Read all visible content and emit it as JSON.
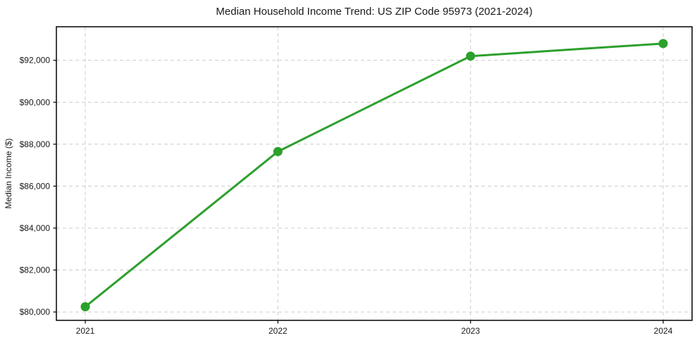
{
  "chart_data": {
    "type": "line",
    "title": "Median Household Income Trend: US ZIP Code 95973 (2021-2024)",
    "xlabel": "",
    "ylabel": "Median Income ($)",
    "x": [
      2021,
      2022,
      2023,
      2024
    ],
    "values": [
      80250,
      87650,
      92200,
      92800
    ],
    "x_tick_labels": [
      "2021",
      "2022",
      "2023",
      "2024"
    ],
    "y_ticks": [
      80000,
      82000,
      84000,
      86000,
      88000,
      90000,
      92000
    ],
    "y_tick_labels": [
      "$80,000",
      "$82,000",
      "$84,000",
      "$86,000",
      "$88,000",
      "$90,000",
      "$92,000"
    ],
    "xlim": [
      2020.85,
      2024.15
    ],
    "ylim": [
      79600,
      93600
    ],
    "grid": {
      "visible": true,
      "style": "dashed",
      "axes": "both"
    },
    "legend_position": "none",
    "marker": "circle",
    "colors": {
      "line": "#2ca02c",
      "marker": "#2ca02c",
      "grid": "#cccccc",
      "spine": "#000000",
      "text": "#1a1a1a",
      "background": "#ffffff"
    }
  }
}
